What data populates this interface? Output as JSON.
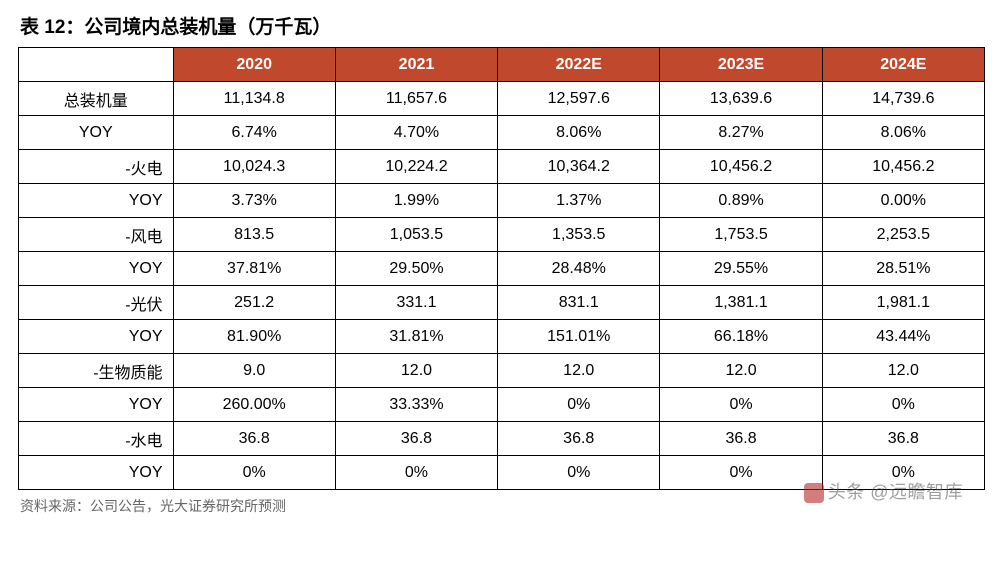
{
  "title": "表 12：公司境内总装机量（万千瓦）",
  "source": "资料来源：公司公告，光大证券研究所预测",
  "watermark": "头条 @远瞻智库",
  "table": {
    "header_bg": "#c0492d",
    "header_fg": "#ffffff",
    "border_color": "#000000",
    "col_widths": [
      "16%",
      "16.8%",
      "16.8%",
      "16.8%",
      "16.8%",
      "16.8%"
    ],
    "columns": [
      "",
      "2020",
      "2021",
      "2022E",
      "2023E",
      "2024E"
    ],
    "rows": [
      {
        "label": "总装机量",
        "align": "center",
        "cells": [
          "11,134.8",
          "11,657.6",
          "12,597.6",
          "13,639.6",
          "14,739.6"
        ]
      },
      {
        "label": "YOY",
        "align": "center",
        "cells": [
          "6.74%",
          "4.70%",
          "8.06%",
          "8.27%",
          "8.06%"
        ]
      },
      {
        "label": "-火电",
        "align": "right",
        "cells": [
          "10,024.3",
          "10,224.2",
          "10,364.2",
          "10,456.2",
          "10,456.2"
        ]
      },
      {
        "label": "YOY",
        "align": "right",
        "cells": [
          "3.73%",
          "1.99%",
          "1.37%",
          "0.89%",
          "0.00%"
        ]
      },
      {
        "label": "-风电",
        "align": "right",
        "cells": [
          "813.5",
          "1,053.5",
          "1,353.5",
          "1,753.5",
          "2,253.5"
        ]
      },
      {
        "label": "YOY",
        "align": "right",
        "cells": [
          "37.81%",
          "29.50%",
          "28.48%",
          "29.55%",
          "28.51%"
        ]
      },
      {
        "label": "-光伏",
        "align": "right",
        "cells": [
          "251.2",
          "331.1",
          "831.1",
          "1,381.1",
          "1,981.1"
        ]
      },
      {
        "label": "YOY",
        "align": "right",
        "cells": [
          "81.90%",
          "31.81%",
          "151.01%",
          "66.18%",
          "43.44%"
        ]
      },
      {
        "label": "-生物质能",
        "align": "right",
        "cells": [
          "9.0",
          "12.0",
          "12.0",
          "12.0",
          "12.0"
        ]
      },
      {
        "label": "YOY",
        "align": "right",
        "cells": [
          "260.00%",
          "33.33%",
          "0%",
          "0%",
          "0%"
        ]
      },
      {
        "label": "-水电",
        "align": "right",
        "cells": [
          "36.8",
          "36.8",
          "36.8",
          "36.8",
          "36.8"
        ]
      },
      {
        "label": "YOY",
        "align": "right",
        "cells": [
          "0%",
          "0%",
          "0%",
          "0%",
          "0%"
        ]
      }
    ]
  }
}
